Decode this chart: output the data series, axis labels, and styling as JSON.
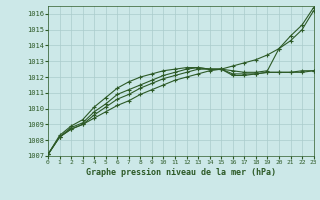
{
  "bg_color": "#cce8e8",
  "grid_color": "#aacccc",
  "line_color": "#2d5a27",
  "xlabel": "Graphe pression niveau de la mer (hPa)",
  "ylim": [
    1007,
    1016.5
  ],
  "xlim": [
    0,
    23
  ],
  "yticks": [
    1007,
    1008,
    1009,
    1010,
    1011,
    1012,
    1013,
    1014,
    1015,
    1016
  ],
  "xticks": [
    0,
    1,
    2,
    3,
    4,
    5,
    6,
    7,
    8,
    9,
    10,
    11,
    12,
    13,
    14,
    15,
    16,
    17,
    18,
    19,
    20,
    21,
    22,
    23
  ],
  "series": [
    [
      1007.1,
      1008.2,
      1008.7,
      1009.0,
      1009.4,
      1009.8,
      1010.2,
      1010.5,
      1010.9,
      1011.2,
      1011.5,
      1011.8,
      1012.0,
      1012.2,
      1012.4,
      1012.5,
      1012.7,
      1012.9,
      1013.1,
      1013.4,
      1013.8,
      1014.3,
      1015.0,
      1016.2
    ],
    [
      1007.1,
      1008.2,
      1008.7,
      1009.0,
      1009.6,
      1010.1,
      1010.6,
      1010.9,
      1011.3,
      1011.6,
      1011.9,
      1012.1,
      1012.3,
      1012.5,
      1012.5,
      1012.5,
      1012.4,
      1012.3,
      1012.3,
      1012.4,
      1013.8,
      1014.6,
      1015.3,
      1016.4
    ],
    [
      1007.1,
      1008.2,
      1008.8,
      1009.1,
      1009.8,
      1010.3,
      1010.9,
      1011.2,
      1011.5,
      1011.8,
      1012.1,
      1012.3,
      1012.5,
      1012.6,
      1012.5,
      1012.5,
      1012.2,
      1012.2,
      1012.2,
      1012.3,
      1012.3,
      1012.3,
      1012.4,
      1012.4
    ],
    [
      1007.1,
      1008.3,
      1008.9,
      1009.3,
      1010.1,
      1010.7,
      1011.3,
      1011.7,
      1012.0,
      1012.2,
      1012.4,
      1012.5,
      1012.6,
      1012.6,
      1012.5,
      1012.5,
      1012.1,
      1012.1,
      1012.2,
      1012.3,
      1012.3,
      1012.3,
      1012.3,
      1012.4
    ]
  ]
}
